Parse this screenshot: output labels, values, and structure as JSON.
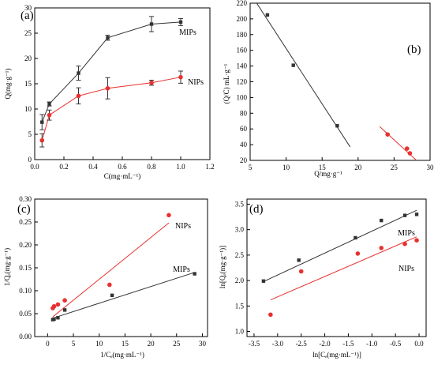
{
  "chart_data": [
    {
      "panel_label": "(a)",
      "type": "line",
      "xlabel": "C(mg·mL⁻¹)",
      "ylabel": "Q(mg·g⁻¹)",
      "xlim": [
        0.0,
        1.2
      ],
      "ylim": [
        0,
        30
      ],
      "xticks": [
        0.0,
        0.2,
        0.4,
        0.6,
        0.8,
        1.0,
        1.2
      ],
      "xtick_labels": [
        "0.0",
        "0.2",
        "0.4",
        "0.6",
        "0.8",
        "1.0",
        "1.2"
      ],
      "yticks": [
        0,
        5,
        10,
        15,
        20,
        25,
        30
      ],
      "ytick_labels": [
        "0",
        "5",
        "10",
        "15",
        "20",
        "25",
        "30"
      ],
      "series": [
        {
          "name": "MIPs",
          "color": "#333333",
          "marker": "square",
          "x": [
            0.05,
            0.1,
            0.3,
            0.5,
            0.8,
            1.0
          ],
          "y": [
            7.4,
            11.0,
            17.1,
            24.1,
            26.8,
            27.2
          ],
          "err": [
            1.5,
            0.4,
            1.4,
            0.5,
            1.5,
            0.7
          ]
        },
        {
          "name": "NIPs",
          "color": "#e8312f",
          "marker": "circle",
          "x": [
            0.05,
            0.1,
            0.3,
            0.5,
            0.8,
            1.0
          ],
          "y": [
            3.8,
            8.8,
            12.6,
            14.1,
            15.2,
            16.3
          ],
          "err": [
            1.3,
            1.0,
            1.6,
            2.1,
            0.5,
            1.2
          ]
        }
      ]
    },
    {
      "panel_label": "(b)",
      "type": "scatter",
      "xlabel": "Q/mg·g⁻¹",
      "ylabel": "(Q/C) mL·g⁻¹",
      "xlim": [
        5,
        30
      ],
      "ylim": [
        20,
        220
      ],
      "xticks": [
        5,
        10,
        15,
        20,
        25,
        30
      ],
      "xtick_labels": [
        "5",
        "10",
        "15",
        "20",
        "25",
        "30"
      ],
      "yticks": [
        20,
        40,
        60,
        80,
        100,
        120,
        140,
        160,
        180,
        200,
        220
      ],
      "ytick_labels": [
        "20",
        "40",
        "60",
        "80",
        "100",
        "120",
        "140",
        "160",
        "180",
        "200",
        "220"
      ],
      "series": [
        {
          "color": "#333333",
          "marker": "square",
          "x": [
            7.4,
            11.0,
            17.1
          ],
          "y": [
            205,
            141,
            64
          ],
          "fit_line": {
            "x": [
              5.2,
              18.9
            ],
            "y": [
              230,
              37
            ]
          }
        },
        {
          "color": "#e8312f",
          "marker": "circle",
          "x": [
            24.1,
            26.8,
            27.2
          ],
          "y": [
            53,
            35,
            29
          ],
          "fit_line": {
            "x": [
              23.0,
              28.7
            ],
            "y": [
              63,
              15
            ]
          }
        }
      ]
    },
    {
      "panel_label": "(c)",
      "type": "scatter",
      "xlabel": "1/Cₑ(mg·mL⁻¹)",
      "ylabel": "1/Qₑ(mg·g⁻¹)",
      "xlim": [
        -2.5,
        31
      ],
      "ylim": [
        0.0,
        0.3
      ],
      "xticks": [
        0,
        5,
        10,
        15,
        20,
        25,
        30
      ],
      "xtick_labels": [
        "0",
        "5",
        "10",
        "15",
        "20",
        "25",
        "30"
      ],
      "yticks": [
        0.0,
        0.05,
        0.1,
        0.15,
        0.2,
        0.25,
        0.3
      ],
      "ytick_labels": [
        "0.00",
        "0.05",
        "0.10",
        "0.15",
        "0.20",
        "0.25",
        "0.30"
      ],
      "series": [
        {
          "name": "NIPs",
          "color": "#e8312f",
          "marker": "circle",
          "x": [
            1.0,
            1.25,
            2.0,
            3.33,
            12.0,
            23.5
          ],
          "y": [
            0.062,
            0.066,
            0.07,
            0.079,
            0.113,
            0.265
          ],
          "fit_line": {
            "x": [
              1.0,
              23.5
            ],
            "y": [
              0.043,
              0.248
            ]
          }
        },
        {
          "name": "MIPs",
          "color": "#333333",
          "marker": "square",
          "x": [
            1.0,
            1.25,
            2.0,
            3.33,
            12.5,
            28.5
          ],
          "y": [
            0.037,
            0.038,
            0.041,
            0.058,
            0.09,
            0.137
          ],
          "fit_line": {
            "x": [
              1.0,
              28.5
            ],
            "y": [
              0.04,
              0.14
            ]
          }
        }
      ]
    },
    {
      "panel_label": "(d)",
      "type": "scatter",
      "xlabel": "ln[Cₑ(mg·mL⁻¹)]",
      "ylabel": "ln[Qₑ(mg·g⁻¹)]",
      "xlim": [
        -3.65,
        0.15
      ],
      "ylim": [
        0.9,
        3.6
      ],
      "xticks": [
        -3.5,
        -3.0,
        -2.5,
        -2.0,
        -1.5,
        -1.0,
        -0.5,
        0.0
      ],
      "xtick_labels": [
        "-3.5",
        "-3.0",
        "-2.5",
        "-2.0",
        "-1.5",
        "-1.0",
        "-0.5",
        "0.0"
      ],
      "yticks": [
        1.0,
        1.5,
        2.0,
        2.5,
        3.0,
        3.5
      ],
      "ytick_labels": [
        "1.0",
        "1.5",
        "2.0",
        "2.5",
        "3.0",
        "3.5"
      ],
      "series": [
        {
          "name": "MIPs",
          "color": "#333333",
          "marker": "square",
          "x": [
            -3.3,
            -2.55,
            -1.35,
            -0.8,
            -0.3,
            -0.05
          ],
          "y": [
            1.99,
            2.4,
            2.84,
            3.18,
            3.28,
            3.3
          ],
          "fit_line": {
            "x": [
              -3.3,
              -0.05
            ],
            "y": [
              1.98,
              3.38
            ]
          }
        },
        {
          "name": "NIPs",
          "color": "#e8312f",
          "marker": "circle",
          "x": [
            -3.15,
            -2.5,
            -1.3,
            -0.8,
            -0.3,
            -0.05
          ],
          "y": [
            1.33,
            2.18,
            2.53,
            2.64,
            2.72,
            2.79
          ],
          "fit_line": {
            "x": [
              -3.15,
              -0.05
            ],
            "y": [
              1.62,
              2.86
            ]
          }
        }
      ]
    }
  ]
}
